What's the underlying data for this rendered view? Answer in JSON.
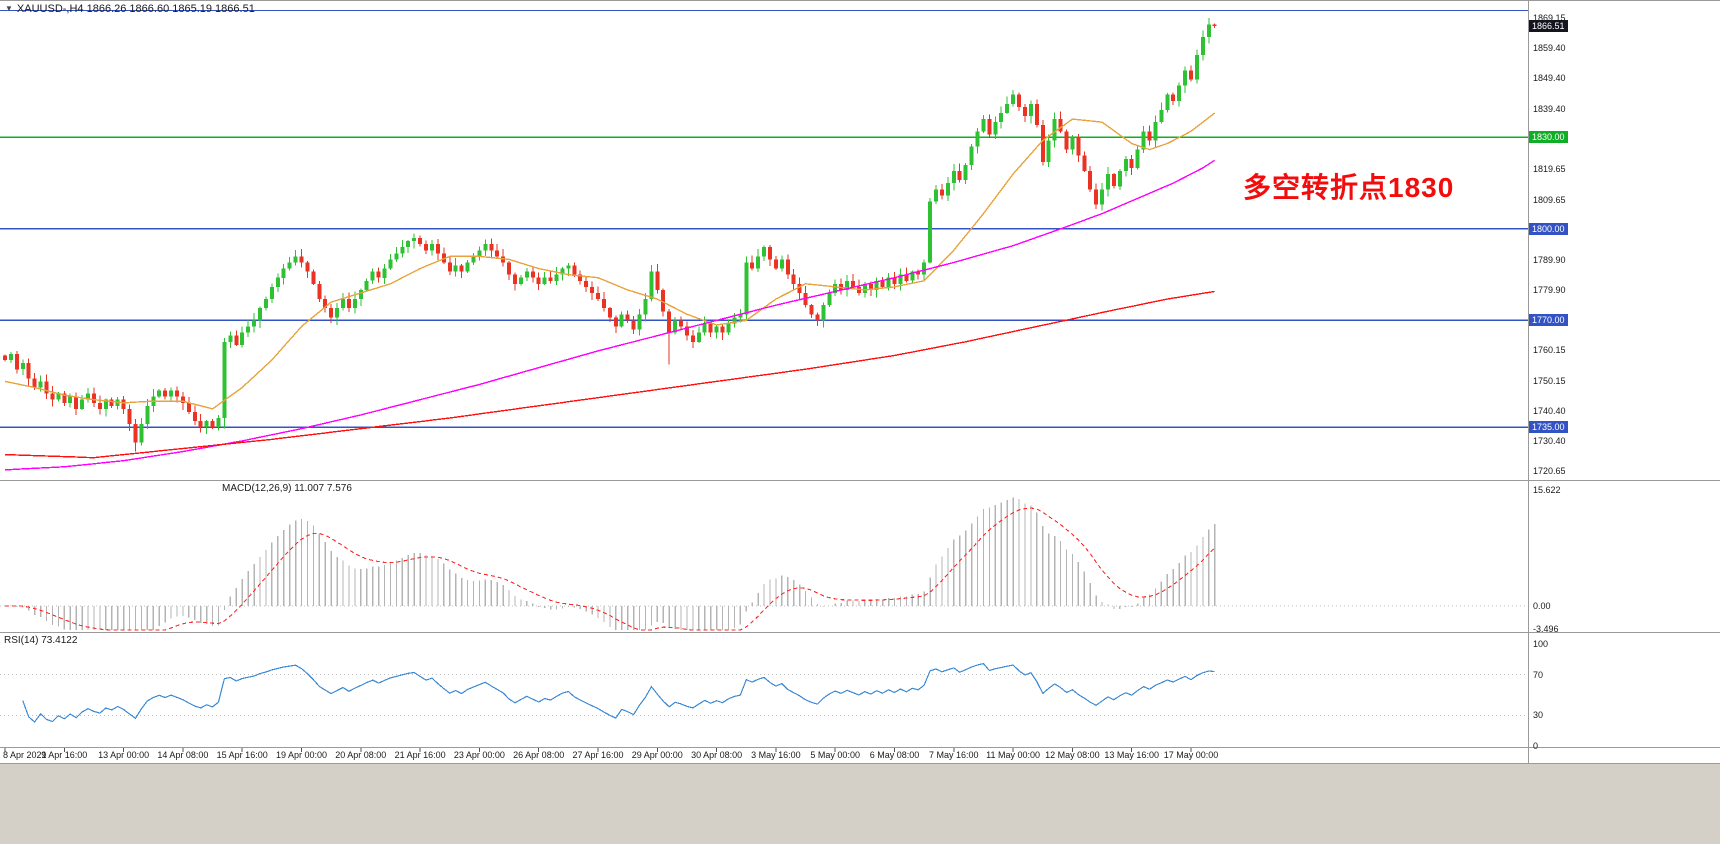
{
  "header": {
    "dropdown_icon": "▼",
    "symbol_line": "XAUUSD-,H4  1866.26 1866.60 1865.19 1866.51"
  },
  "annotation": {
    "text": "多空转折点1830",
    "color": "#f20c0c"
  },
  "macd_panel": {
    "label": "MACD(12,26,9) 11.007 7.576",
    "scale_labels": [
      {
        "text": "15.622",
        "value": 15.622
      },
      {
        "text": "0.00",
        "value": 0
      },
      {
        "text": "-3.496",
        "value": -3.496
      }
    ]
  },
  "rsi_panel": {
    "label": "RSI(14) 73.4122",
    "scale_labels": [
      {
        "text": "100",
        "value": 100
      },
      {
        "text": "70",
        "value": 70
      },
      {
        "text": "30",
        "value": 30
      },
      {
        "text": "0",
        "value": 0
      }
    ],
    "levels": [
      70,
      30
    ]
  },
  "price_axis": {
    "ticks": [
      {
        "text": "1869.15",
        "price": 1869.15
      },
      {
        "text": "1859.40",
        "price": 1859.4
      },
      {
        "text": "1849.40",
        "price": 1849.4
      },
      {
        "text": "1839.40",
        "price": 1839.4
      },
      {
        "text": "1819.65",
        "price": 1819.65
      },
      {
        "text": "1809.65",
        "price": 1809.65
      },
      {
        "text": "1789.90",
        "price": 1789.9
      },
      {
        "text": "1779.90",
        "price": 1779.9
      },
      {
        "text": "1760.15",
        "price": 1760.15
      },
      {
        "text": "1750.15",
        "price": 1750.15
      },
      {
        "text": "1740.40",
        "price": 1740.4
      },
      {
        "text": "1730.40",
        "price": 1730.4
      },
      {
        "text": "1720.65",
        "price": 1720.65
      }
    ],
    "boxes": [
      {
        "text": "1866.51",
        "price": 1866.51,
        "bg": "#15151f"
      },
      {
        "text": "1830.00",
        "price": 1830,
        "bg": "#0fae26"
      },
      {
        "text": "1800.00",
        "price": 1800,
        "bg": "#3353c4"
      },
      {
        "text": "1770.00",
        "price": 1770,
        "bg": "#3353c4"
      },
      {
        "text": "1735.00",
        "price": 1735,
        "bg": "#3353c4"
      }
    ]
  },
  "time_axis": {
    "bars_per_label": 10,
    "labels": [
      "8 Apr 2021",
      "9 Apr 16:00",
      "13 Apr 00:00",
      "14 Apr 08:00",
      "15 Apr 16:00",
      "19 Apr 00:00",
      "20 Apr 08:00",
      "21 Apr 16:00",
      "23 Apr 00:00",
      "26 Apr 08:00",
      "27 Apr 16:00",
      "29 Apr 00:00",
      "30 Apr 08:00",
      "3 May 16:00",
      "5 May 00:00",
      "6 May 08:00",
      "7 May 16:00",
      "11 May 00:00",
      "12 May 08:00",
      "13 May 16:00",
      "17 May 00:00"
    ]
  },
  "chart_data": {
    "type": "candlestick",
    "symbol": "XAUUSD-",
    "timeframe": "H4",
    "ohlc_display": {
      "open": 1866.26,
      "high": 1866.6,
      "low": 1865.19,
      "close": 1866.51
    },
    "y_range": [
      1716,
      1872.5
    ],
    "closes": [
      1757,
      1759,
      1754,
      1756,
      1751,
      1748,
      1750,
      1746,
      1744,
      1746,
      1743,
      1745,
      1741,
      1744,
      1746,
      1743,
      1741,
      1744,
      1742,
      1744,
      1741,
      1736,
      1730,
      1736,
      1742,
      1745,
      1747,
      1745,
      1747,
      1745,
      1743,
      1740,
      1737,
      1735,
      1737,
      1735,
      1738,
      1763,
      1765,
      1762,
      1766,
      1768,
      1770,
      1774,
      1777,
      1781,
      1784,
      1787,
      1789,
      1791,
      1789,
      1786,
      1782,
      1777,
      1774,
      1771,
      1774,
      1777,
      1774,
      1777,
      1780,
      1783,
      1786,
      1784,
      1787,
      1790,
      1792,
      1794,
      1796,
      1797,
      1795,
      1793,
      1795,
      1792,
      1789,
      1786,
      1788,
      1786,
      1789,
      1791,
      1793,
      1795,
      1793,
      1791,
      1789,
      1785,
      1782,
      1784,
      1786,
      1784,
      1782,
      1784,
      1783,
      1785,
      1787,
      1788,
      1785,
      1783,
      1781,
      1779,
      1777,
      1774,
      1771,
      1768,
      1772,
      1770,
      1767,
      1772,
      1777,
      1786,
      1780,
      1773,
      1766,
      1770,
      1768,
      1765,
      1763,
      1766,
      1769,
      1766,
      1768,
      1766,
      1769,
      1771,
      1772,
      1789,
      1787,
      1791,
      1794,
      1790,
      1787,
      1790,
      1785,
      1782,
      1779,
      1775,
      1772,
      1770,
      1775,
      1779,
      1782,
      1780,
      1783,
      1781,
      1779,
      1782,
      1780,
      1783,
      1781,
      1784,
      1782,
      1785,
      1783,
      1786,
      1785,
      1789,
      1809,
      1813,
      1811,
      1815,
      1819,
      1816,
      1821,
      1827,
      1832,
      1836,
      1831,
      1835,
      1838,
      1841,
      1844,
      1840,
      1837,
      1841,
      1834,
      1822,
      1829,
      1836,
      1832,
      1826,
      1830,
      1824,
      1819,
      1813,
      1808,
      1813,
      1818,
      1814,
      1819,
      1823,
      1820,
      1826,
      1832,
      1829,
      1835,
      1839,
      1844,
      1842,
      1847,
      1852,
      1849,
      1857,
      1863,
      1867,
      1866.5
    ],
    "wick_high_overrides": {
      "69": 1798.5,
      "170": 1845.5,
      "203": 1869.1
    },
    "wick_low_overrides": {
      "22": 1727,
      "37": 1734.5,
      "112": 1755.5,
      "184": 1806.5
    },
    "moving_averages": [
      {
        "name": "ma-fast",
        "color": "#e8a33d",
        "anchors": [
          [
            0,
            1750
          ],
          [
            5,
            1748
          ],
          [
            10,
            1745.5
          ],
          [
            15,
            1744
          ],
          [
            20,
            1743
          ],
          [
            25,
            1743.5
          ],
          [
            30,
            1743.5
          ],
          [
            35,
            1741
          ],
          [
            40,
            1748
          ],
          [
            45,
            1757
          ],
          [
            50,
            1768
          ],
          [
            55,
            1776
          ],
          [
            60,
            1779
          ],
          [
            65,
            1782
          ],
          [
            70,
            1787
          ],
          [
            75,
            1791
          ],
          [
            80,
            1791
          ],
          [
            85,
            1790
          ],
          [
            90,
            1787
          ],
          [
            95,
            1785
          ],
          [
            100,
            1784
          ],
          [
            105,
            1780
          ],
          [
            110,
            1777
          ],
          [
            115,
            1772
          ],
          [
            120,
            1768.5
          ],
          [
            125,
            1770
          ],
          [
            130,
            1777
          ],
          [
            135,
            1782
          ],
          [
            140,
            1781
          ],
          [
            145,
            1780
          ],
          [
            150,
            1781
          ],
          [
            155,
            1783
          ],
          [
            160,
            1793
          ],
          [
            165,
            1805
          ],
          [
            170,
            1818
          ],
          [
            175,
            1829
          ],
          [
            180,
            1836
          ],
          [
            185,
            1835
          ],
          [
            190,
            1828
          ],
          [
            193,
            1826
          ],
          [
            196,
            1828
          ],
          [
            200,
            1832
          ],
          [
            204,
            1838
          ]
        ]
      },
      {
        "name": "ma-mid",
        "color": "#ff00ff",
        "anchors": [
          [
            0,
            1721
          ],
          [
            10,
            1722
          ],
          [
            20,
            1724
          ],
          [
            30,
            1727
          ],
          [
            40,
            1730.5
          ],
          [
            50,
            1734.5
          ],
          [
            60,
            1739
          ],
          [
            70,
            1744
          ],
          [
            80,
            1749
          ],
          [
            90,
            1754.5
          ],
          [
            100,
            1760
          ],
          [
            110,
            1765
          ],
          [
            120,
            1770
          ],
          [
            130,
            1775
          ],
          [
            140,
            1779.5
          ],
          [
            150,
            1784
          ],
          [
            160,
            1789
          ],
          [
            170,
            1794.5
          ],
          [
            178,
            1800
          ],
          [
            185,
            1805
          ],
          [
            191,
            1810
          ],
          [
            197,
            1815
          ],
          [
            202,
            1820
          ],
          [
            204,
            1822.5
          ]
        ]
      },
      {
        "name": "ma-slow",
        "color": "#ff1010",
        "anchors": [
          [
            0,
            1726
          ],
          [
            15,
            1725
          ],
          [
            30,
            1728
          ],
          [
            45,
            1731
          ],
          [
            60,
            1734.5
          ],
          [
            75,
            1738
          ],
          [
            90,
            1742
          ],
          [
            105,
            1746
          ],
          [
            120,
            1750
          ],
          [
            135,
            1754
          ],
          [
            150,
            1758.5
          ],
          [
            162,
            1763
          ],
          [
            174,
            1768
          ],
          [
            186,
            1773
          ],
          [
            196,
            1777
          ],
          [
            204,
            1779.5
          ]
        ]
      }
    ],
    "horizontal_lines": [
      {
        "price": 1871.6,
        "color": "#3353c4"
      },
      {
        "price": 1830,
        "color": "#0fae26"
      },
      {
        "price": 1800,
        "color": "#3353c4"
      },
      {
        "price": 1770,
        "color": "#3353c4"
      },
      {
        "price": 1735,
        "color": "#3353c4"
      }
    ],
    "indicators": {
      "macd": {
        "fast": 12,
        "slow": 26,
        "signal": 9,
        "main_value": 11.007,
        "signal_value": 7.576
      },
      "rsi": {
        "period": 14,
        "value": 73.4122
      }
    },
    "colors": {
      "bull": "#2fc134",
      "bear": "#ea3323",
      "macd_hist": "#b4b4b4",
      "macd_signal": "#ff2a2a",
      "rsi_line": "#3d8bd4",
      "grid_dotted": "#c0c0c0"
    }
  }
}
